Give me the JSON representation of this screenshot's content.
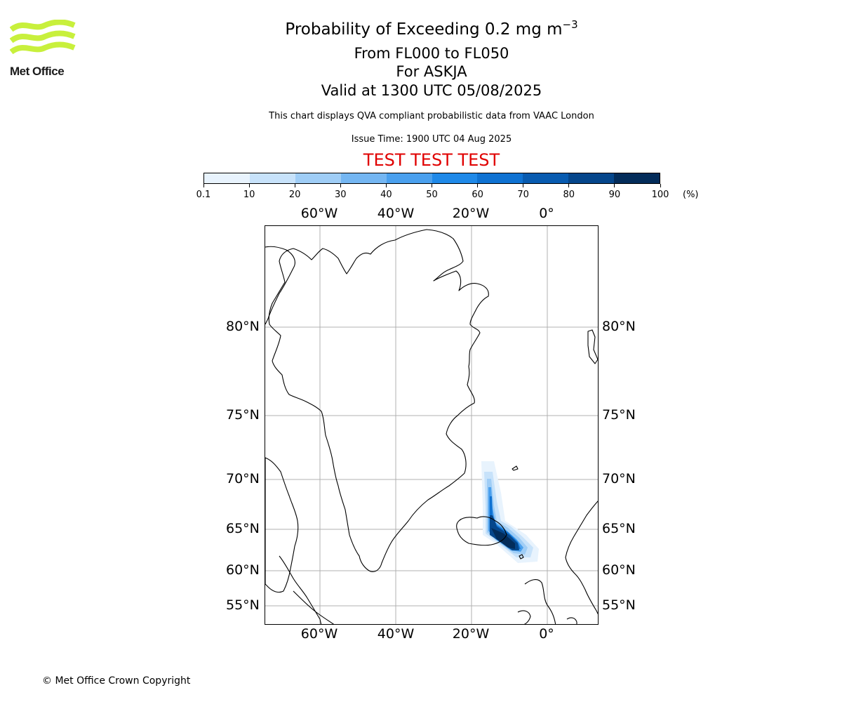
{
  "header": {
    "title_main": "Probability of Exceeding 0.2 mg m",
    "title_exponent": "−3",
    "flight_levels": "From FL000 to FL050",
    "volcano": "For ASKJA",
    "valid_time": "Valid at 1300 UTC 05/08/2025",
    "disclaimer": "This chart displays QVA compliant probabilistic data from VAAC London",
    "issue_time": "Issue Time: 1900 UTC 04 Aug 2025",
    "test_banner": "TEST TEST TEST"
  },
  "logo": {
    "text": "Met Office",
    "color": "#c8f03c"
  },
  "colorbar": {
    "unit": "(%)",
    "ticks": [
      "0.1",
      "10",
      "20",
      "30",
      "40",
      "50",
      "60",
      "70",
      "80",
      "90",
      "100"
    ],
    "colors": [
      "#e8f3fd",
      "#c7e2fa",
      "#9fcdf6",
      "#74b6f2",
      "#4aa0ee",
      "#1f89e8",
      "#0f72d2",
      "#085bb0",
      "#05468b",
      "#032c5a"
    ]
  },
  "map": {
    "lon_labels_top": [
      "60°W",
      "40°W",
      "20°W",
      "0°"
    ],
    "lon_labels_bottom": [
      "60°W",
      "40°W",
      "20°W",
      "0°"
    ],
    "lat_labels_left": [
      "80°N",
      "75°N",
      "70°N",
      "65°N",
      "60°N",
      "55°N"
    ],
    "lat_labels_right": [
      "80°N",
      "75°N",
      "70°N",
      "65°N",
      "60°N",
      "55°N"
    ],
    "gridline_color": "#b0b0b0",
    "coastline_color": "#000000"
  },
  "footer": {
    "copyright": "© Met Office Crown Copyright"
  }
}
